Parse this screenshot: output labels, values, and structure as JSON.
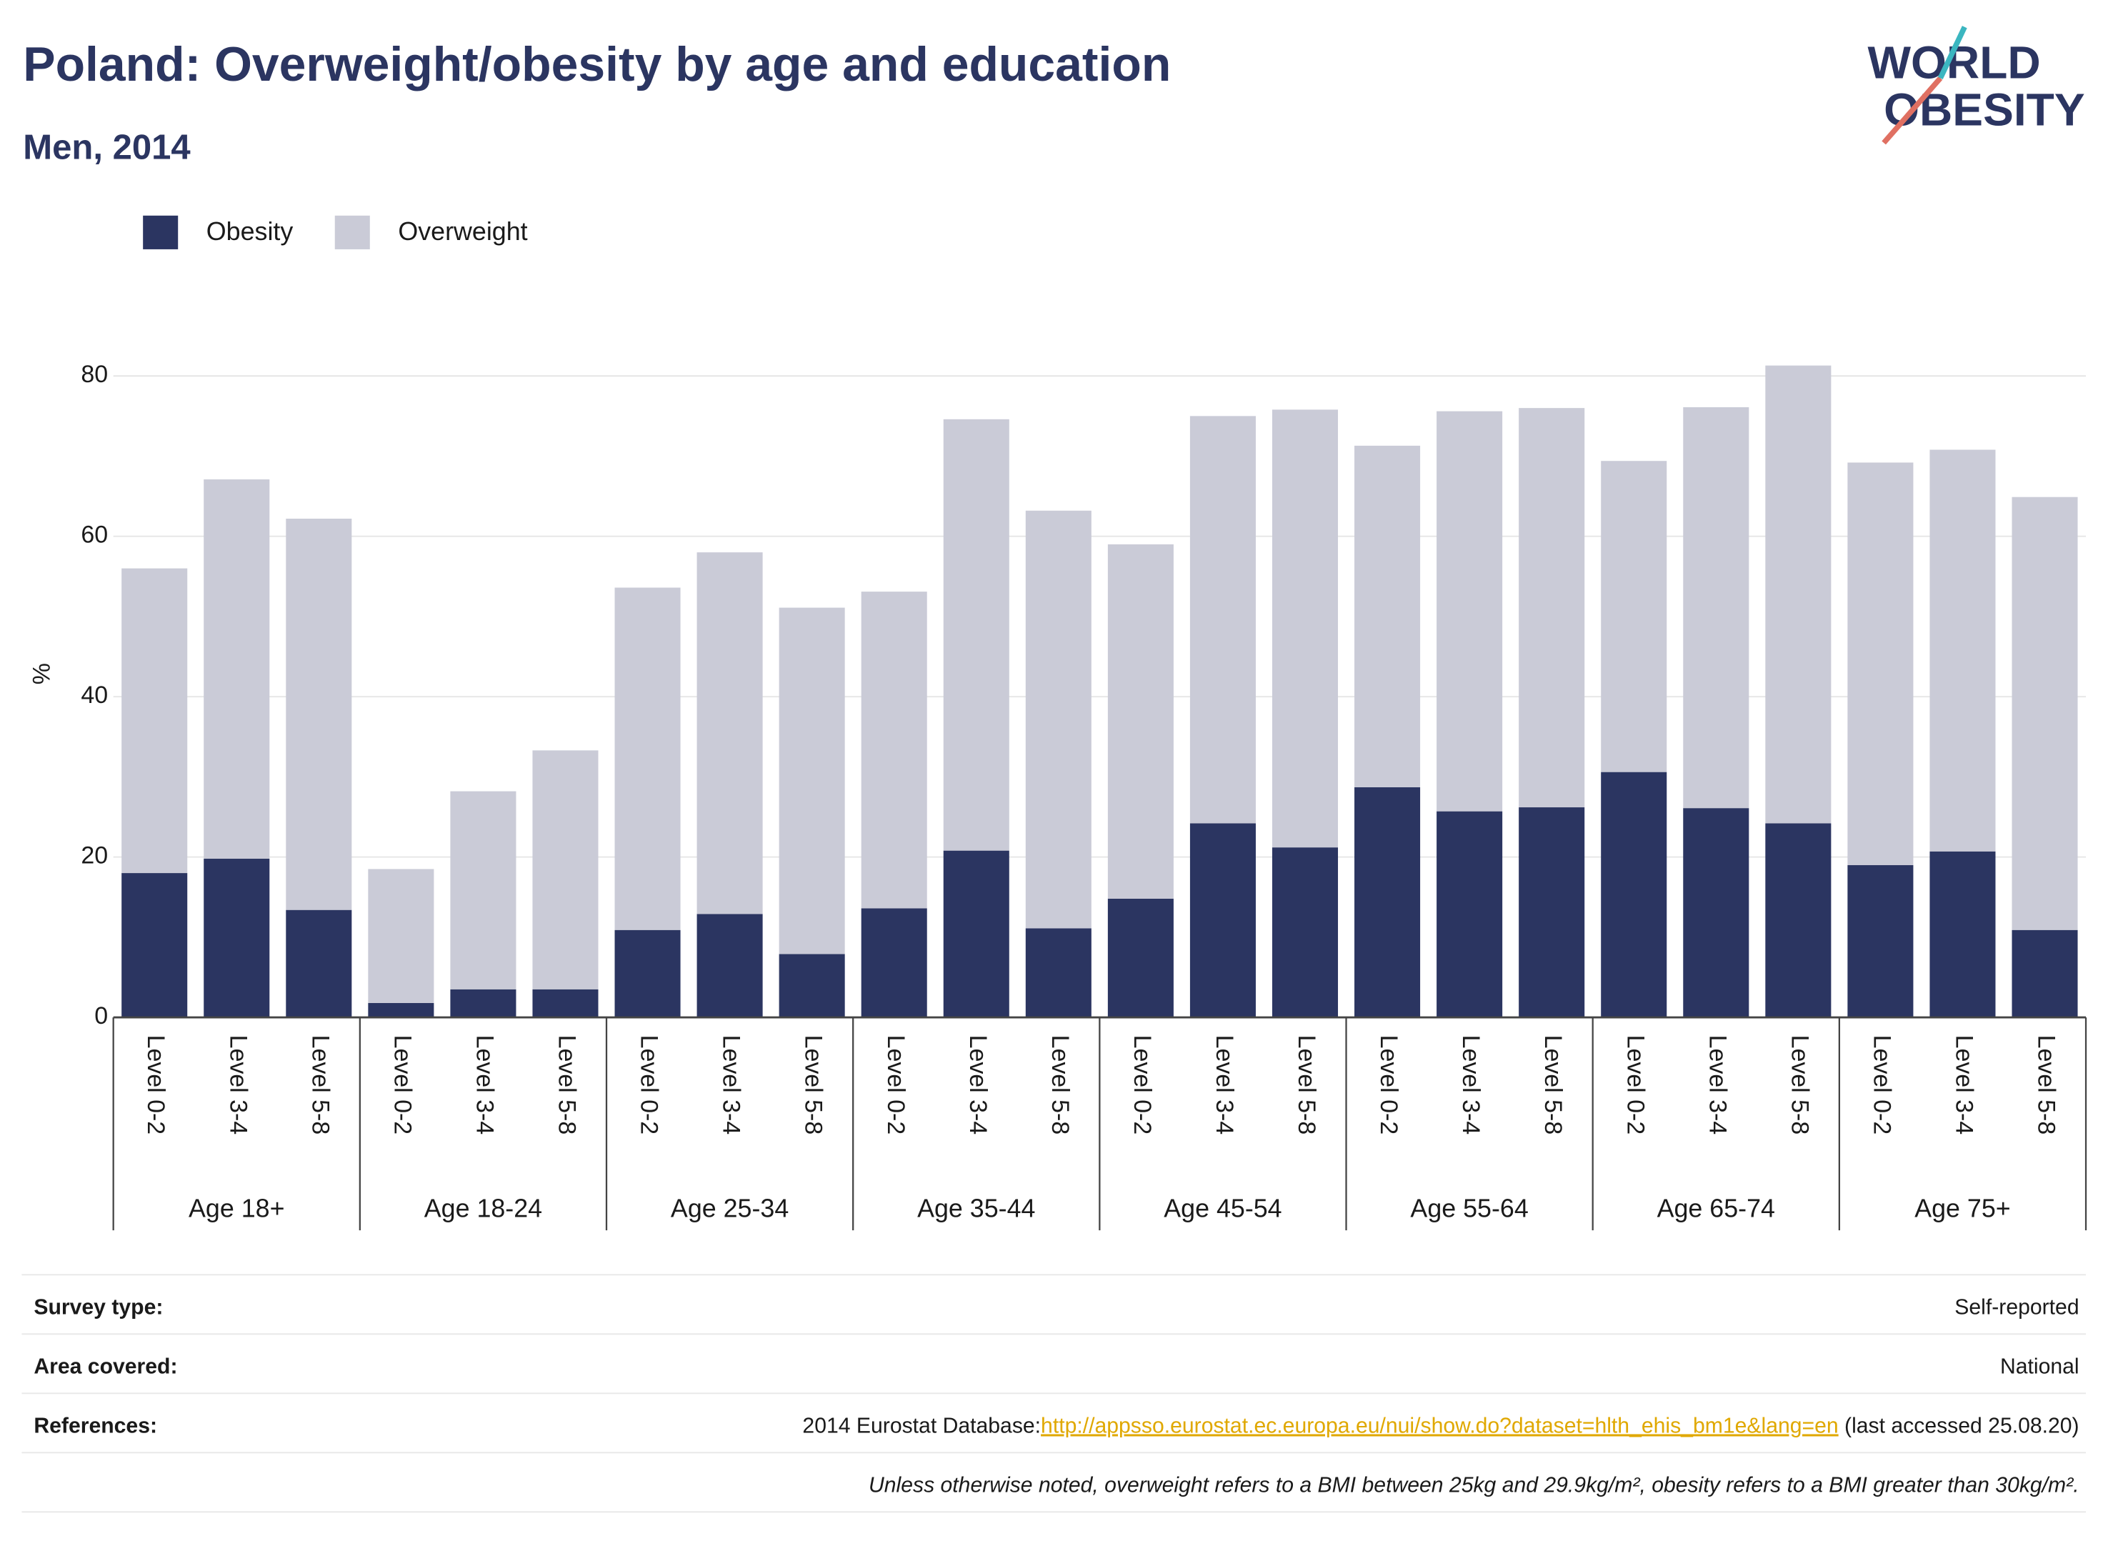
{
  "chart_data": {
    "type": "stacked_bar",
    "title": "Poland: Overweight/obesity by age and education",
    "subtitle": "Men, 2014",
    "y_label": "%",
    "groups": [
      "Age 18+",
      "Age 18-24",
      "Age 25-34",
      "Age 35-44",
      "Age 45-54",
      "Age 55-64",
      "Age 65-74",
      "Age 75+"
    ],
    "categories": [
      "Level 0-2",
      "Level 3-4",
      "Level 5-8",
      "Level 0-2",
      "Level 3-4",
      "Level 5-8",
      "Level 0-2",
      "Level 3-4",
      "Level 5-8",
      "Level 0-2",
      "Level 3-4",
      "Level 5-8",
      "Level 0-2",
      "Level 3-4",
      "Level 5-8",
      "Level 0-2",
      "Level 3-4",
      "Level 5-8",
      "Level 0-2",
      "Level 3-4",
      "Level 5-8",
      "Level 0-2",
      "Level 3-4",
      "Level 5-8"
    ],
    "series": [
      {
        "name": "Obesity",
        "color": "#2b3561",
        "values": [
          18.0,
          19.8,
          13.4,
          1.8,
          3.5,
          3.5,
          10.9,
          12.9,
          7.9,
          13.6,
          20.8,
          11.1,
          14.8,
          24.2,
          21.2,
          28.7,
          25.7,
          26.2,
          30.6,
          26.1,
          24.2,
          19.0,
          20.7,
          10.9
        ]
      },
      {
        "name": "Overweight",
        "color": "#cacbd7",
        "values": [
          38.0,
          47.3,
          48.8,
          16.7,
          24.7,
          29.8,
          42.7,
          45.1,
          43.2,
          39.5,
          53.8,
          52.1,
          44.2,
          50.8,
          54.6,
          42.6,
          49.9,
          49.8,
          38.8,
          50.0,
          57.1,
          50.2,
          50.1,
          54.0
        ]
      }
    ],
    "ylim": [
      0,
      80
    ],
    "yticks": [
      0,
      20,
      40,
      60,
      80
    ],
    "grid": true,
    "legend": "top-left"
  },
  "logo": [
    "WORLD",
    "OBESITY"
  ],
  "footer": {
    "rows": [
      {
        "label": "Survey type:",
        "value": "Self-reported"
      },
      {
        "label": "Area covered:",
        "value": "National"
      }
    ],
    "references": {
      "label": "References:",
      "prefix": "2014 Eurostat Database:",
      "link": "http://appsso.eurostat.ec.europa.eu/nui/show.do?dataset=hlth_ehis_bm1e&lang=en",
      "suffix": " (last accessed 25.08.20)"
    },
    "note": "Unless otherwise noted, overweight refers to a BMI between 25kg and 29.9kg/m², obesity refers to a BMI greater than 30kg/m²."
  }
}
